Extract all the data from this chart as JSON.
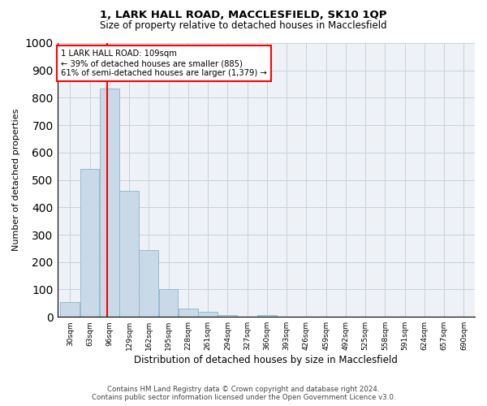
{
  "title1": "1, LARK HALL ROAD, MACCLESFIELD, SK10 1QP",
  "title2": "Size of property relative to detached houses in Macclesfield",
  "xlabel": "Distribution of detached houses by size in Macclesfield",
  "ylabel": "Number of detached properties",
  "bin_labels": [
    "30sqm",
    "63sqm",
    "96sqm",
    "129sqm",
    "162sqm",
    "195sqm",
    "228sqm",
    "261sqm",
    "294sqm",
    "327sqm",
    "360sqm",
    "393sqm",
    "426sqm",
    "459sqm",
    "492sqm",
    "525sqm",
    "558sqm",
    "591sqm",
    "624sqm",
    "657sqm",
    "690sqm"
  ],
  "bin_edges": [
    30,
    63,
    96,
    129,
    162,
    195,
    228,
    261,
    294,
    327,
    360,
    393,
    426,
    459,
    492,
    525,
    558,
    591,
    624,
    657,
    690
  ],
  "bar_heights": [
    55,
    540,
    835,
    460,
    245,
    100,
    30,
    18,
    8,
    0,
    8,
    0,
    0,
    0,
    0,
    0,
    0,
    0,
    0,
    0
  ],
  "bar_color": "#c9d9e8",
  "bar_edge_color": "#8ab4cc",
  "grid_color": "#c8d0dc",
  "property_size_sqm": 109,
  "vline_color": "red",
  "annotation_text": "1 LARK HALL ROAD: 109sqm\n← 39% of detached houses are smaller (885)\n61% of semi-detached houses are larger (1,379) →",
  "annotation_box_color": "white",
  "annotation_box_edge_color": "red",
  "ylim": [
    0,
    1000
  ],
  "yticks": [
    0,
    100,
    200,
    300,
    400,
    500,
    600,
    700,
    800,
    900,
    1000
  ],
  "footer1": "Contains HM Land Registry data © Crown copyright and database right 2024.",
  "footer2": "Contains public sector information licensed under the Open Government Licence v3.0.",
  "background_color": "#eef2f7"
}
